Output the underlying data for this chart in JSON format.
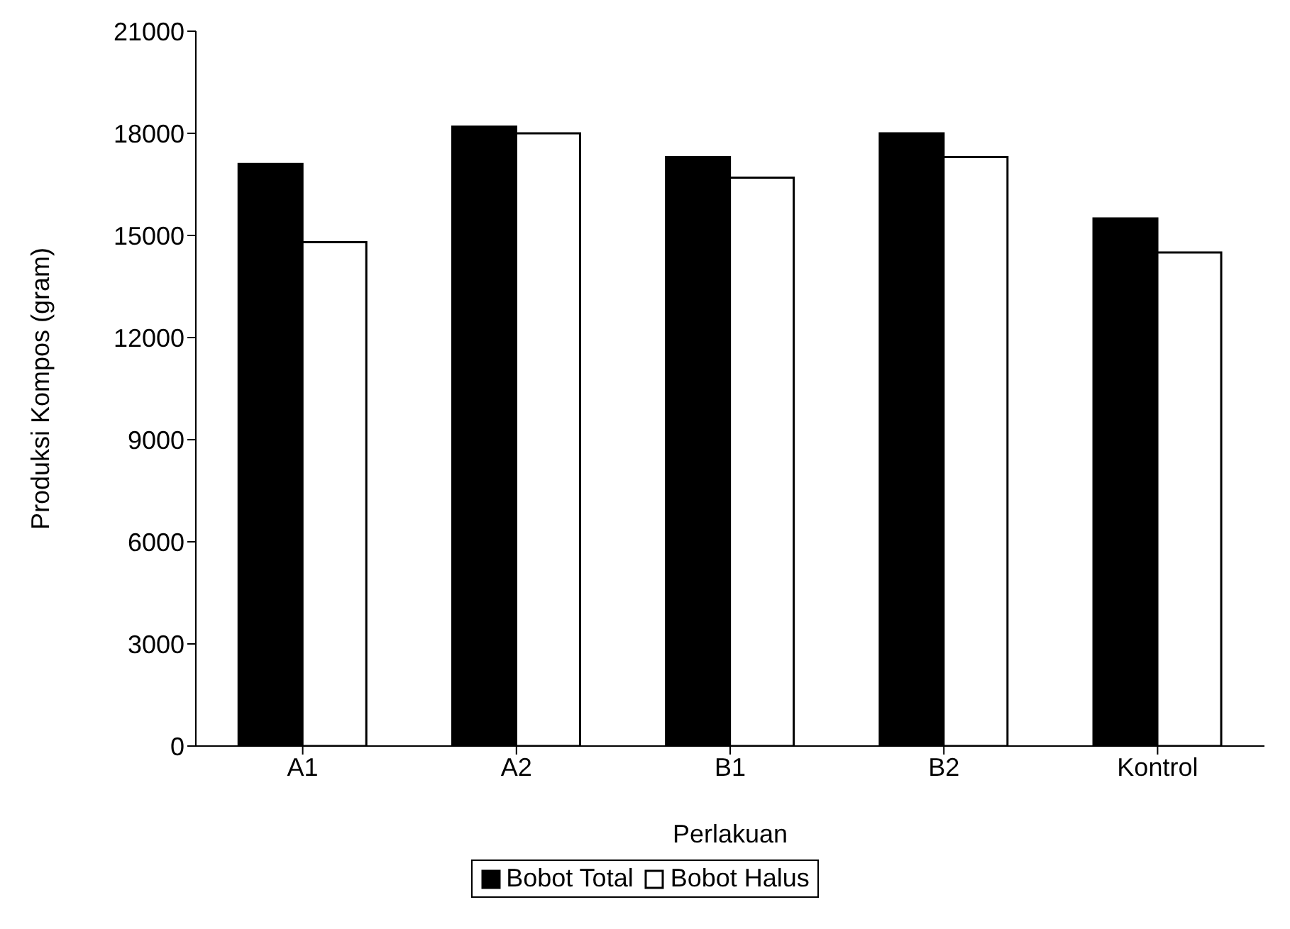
{
  "chart_data": {
    "type": "bar",
    "xlabel": "Perlakuan",
    "ylabel": "Produksi Kompos (gram)",
    "categories": [
      "A1",
      "A2",
      "B1",
      "B2",
      "Kontrol"
    ],
    "series": [
      {
        "name": "Bobot Total",
        "color": "#000000",
        "values": [
          17100,
          18200,
          17300,
          18000,
          15500
        ]
      },
      {
        "name": "Bobot Halus",
        "color": "#ffffff",
        "values": [
          14800,
          18000,
          16700,
          17300,
          14500
        ]
      }
    ],
    "ylim": [
      0,
      21000
    ],
    "yticks": [
      0,
      3000,
      6000,
      9000,
      12000,
      15000,
      18000,
      21000
    ],
    "grid": false,
    "legend": "bottom"
  }
}
